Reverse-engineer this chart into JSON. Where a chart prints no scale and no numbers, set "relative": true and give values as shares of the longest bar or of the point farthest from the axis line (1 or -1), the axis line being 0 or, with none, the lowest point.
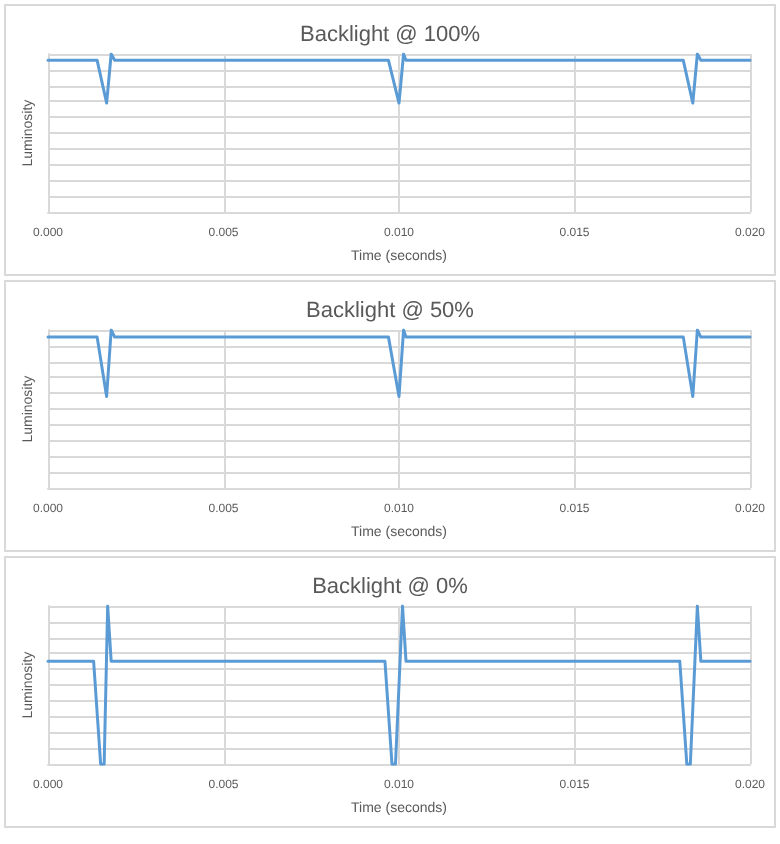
{
  "chart_data": [
    {
      "type": "line",
      "title": "Backlight @ 100%",
      "xlabel": "Time (seconds)",
      "ylabel": "Luminosity",
      "relative": true,
      "grid": true,
      "marker": "none",
      "xlim": [
        0,
        0.02
      ],
      "xticks": [
        {
          "value": 0,
          "label": "0.000"
        },
        {
          "value": 0.005,
          "label": "0.005"
        },
        {
          "value": 0.01,
          "label": "0.010"
        },
        {
          "value": 0.015,
          "label": "0.015"
        },
        {
          "value": 0.02,
          "label": "0.020"
        }
      ],
      "series": [
        {
          "color": "#5b9bd5",
          "x": [
            0,
            0.0014,
            0.00167,
            0.0018,
            0.0019,
            0.0097,
            0.01,
            0.01013,
            0.0102,
            0.0181,
            0.01837,
            0.0185,
            0.0186,
            0.02
          ],
          "values": [
            0.96,
            0.96,
            0.69,
            1,
            0.96,
            0.96,
            0.69,
            1,
            0.96,
            0.96,
            0.69,
            1,
            0.96,
            0.96
          ]
        }
      ]
    },
    {
      "type": "line",
      "title": "Backlight @ 50%",
      "xlabel": "Time (seconds)",
      "ylabel": "Luminosity",
      "relative": true,
      "grid": true,
      "marker": "none",
      "xlim": [
        0,
        0.02
      ],
      "xticks": [
        {
          "value": 0,
          "label": "0.000"
        },
        {
          "value": 0.005,
          "label": "0.005"
        },
        {
          "value": 0.01,
          "label": "0.010"
        },
        {
          "value": 0.015,
          "label": "0.015"
        },
        {
          "value": 0.02,
          "label": "0.020"
        }
      ],
      "series": [
        {
          "color": "#5b9bd5",
          "x": [
            0,
            0.0014,
            0.00167,
            0.0018,
            0.0019,
            0.0097,
            0.01,
            0.01013,
            0.0102,
            0.0181,
            0.01837,
            0.0185,
            0.0186,
            0.02
          ],
          "values": [
            0.955,
            0.955,
            0.58,
            1,
            0.955,
            0.955,
            0.58,
            1,
            0.955,
            0.955,
            0.58,
            1,
            0.955,
            0.955
          ]
        }
      ]
    },
    {
      "type": "line",
      "title": "Backlight @ 0%",
      "xlabel": "Time (seconds)",
      "ylabel": "Luminosity",
      "relative": true,
      "grid": true,
      "marker": "none",
      "xlim": [
        0,
        0.02
      ],
      "xticks": [
        {
          "value": 0,
          "label": "0.000"
        },
        {
          "value": 0.005,
          "label": "0.005"
        },
        {
          "value": 0.01,
          "label": "0.010"
        },
        {
          "value": 0.015,
          "label": "0.015"
        },
        {
          "value": 0.02,
          "label": "0.020"
        }
      ],
      "series": [
        {
          "color": "#5b9bd5",
          "x": [
            0,
            0.0013,
            0.0015,
            0.0016,
            0.0017,
            0.0018,
            0.0096,
            0.0098,
            0.0099,
            0.0101,
            0.0102,
            0.018,
            0.0182,
            0.0183,
            0.0185,
            0.0186,
            0.02
          ],
          "values": [
            0.65,
            0.65,
            0,
            0,
            1,
            0.65,
            0.65,
            0,
            0,
            1,
            0.65,
            0.65,
            0,
            0,
            1,
            0.65,
            0.65
          ]
        }
      ]
    }
  ]
}
